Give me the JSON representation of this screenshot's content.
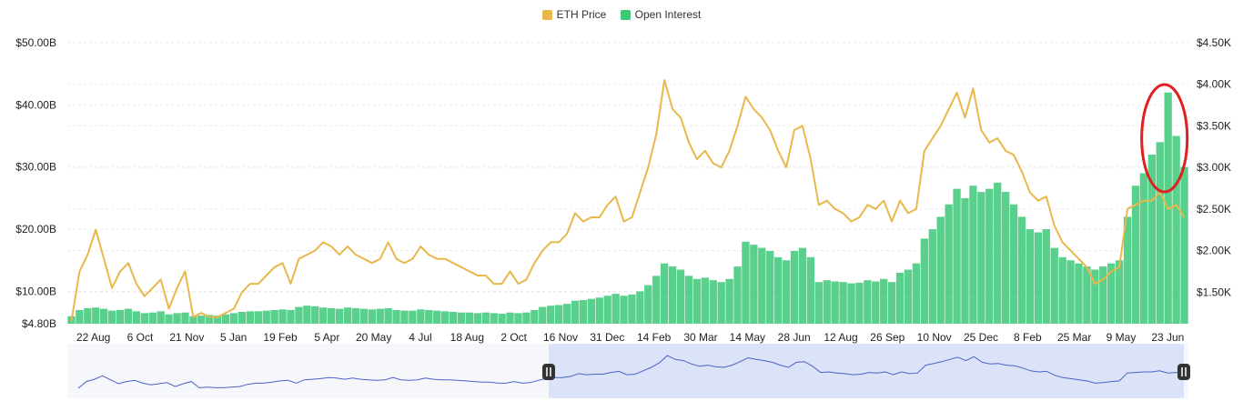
{
  "legend": {
    "price_label": "ETH Price",
    "oi_label": "Open Interest"
  },
  "colors": {
    "price": "#E8B84A",
    "oi": "#3CC878",
    "oi_light": "#8FE0AE",
    "highlight_circle": "#E02020",
    "grid": "#EBEBEB",
    "axis_text": "#222222",
    "navigator_fill": "#DCE2F7",
    "navigator_line": "#4A63C9"
  },
  "chart_data": {
    "type": "bar+line",
    "title": "",
    "x_ticks": [
      "22 Aug",
      "6 Oct",
      "21 Nov",
      "5 Jan",
      "19 Feb",
      "5 Apr",
      "20 May",
      "4 Jul",
      "18 Aug",
      "2 Oct",
      "16 Nov",
      "31 Dec",
      "14 Feb",
      "30 Mar",
      "14 May",
      "28 Jun",
      "12 Aug",
      "26 Sep",
      "10 Nov",
      "25 Dec",
      "8 Feb",
      "25 Mar",
      "9 May",
      "23 Jun"
    ],
    "y_left": {
      "label": "Open Interest",
      "ticks": [
        "$4.80B",
        "$10.00B",
        "$20.00B",
        "$30.00B",
        "$40.00B",
        "$50.00B"
      ],
      "tick_values": [
        4.8,
        10,
        20,
        30,
        40,
        50
      ],
      "range": [
        4.8,
        50
      ]
    },
    "y_right": {
      "label": "ETH Price",
      "ticks": [
        "$1.50K",
        "$2.00K",
        "$2.50K",
        "$3.00K",
        "$3.50K",
        "$4.00K",
        "$4.50K"
      ],
      "tick_values": [
        1.5,
        2.0,
        2.5,
        3.0,
        3.5,
        4.0,
        4.5
      ],
      "range": [
        1.12,
        4.5
      ]
    },
    "series": [
      {
        "name": "ETH Price",
        "type": "line",
        "axis": "right",
        "unit": "K USD",
        "values": [
          1.15,
          1.75,
          1.95,
          2.25,
          1.9,
          1.55,
          1.75,
          1.85,
          1.6,
          1.45,
          1.55,
          1.65,
          1.3,
          1.55,
          1.75,
          1.2,
          1.25,
          1.2,
          1.2,
          1.25,
          1.3,
          1.5,
          1.6,
          1.6,
          1.7,
          1.8,
          1.85,
          1.6,
          1.9,
          1.95,
          2.0,
          2.1,
          2.05,
          1.95,
          2.05,
          1.95,
          1.9,
          1.85,
          1.9,
          2.1,
          1.9,
          1.85,
          1.9,
          2.05,
          1.95,
          1.9,
          1.9,
          1.85,
          1.8,
          1.75,
          1.7,
          1.7,
          1.6,
          1.6,
          1.75,
          1.6,
          1.65,
          1.85,
          2.0,
          2.1,
          2.1,
          2.2,
          2.45,
          2.35,
          2.4,
          2.4,
          2.55,
          2.65,
          2.35,
          2.4,
          2.7,
          3.0,
          3.4,
          4.05,
          3.7,
          3.6,
          3.3,
          3.1,
          3.2,
          3.05,
          3.0,
          3.2,
          3.5,
          3.85,
          3.7,
          3.6,
          3.45,
          3.2,
          3.0,
          3.45,
          3.5,
          3.1,
          2.55,
          2.6,
          2.5,
          2.45,
          2.35,
          2.4,
          2.55,
          2.5,
          2.6,
          2.35,
          2.6,
          2.45,
          2.5,
          3.2,
          3.35,
          3.5,
          3.7,
          3.9,
          3.6,
          3.95,
          3.45,
          3.3,
          3.35,
          3.2,
          3.15,
          2.95,
          2.7,
          2.6,
          2.65,
          2.3,
          2.1,
          2.0,
          1.9,
          1.8,
          1.6,
          1.65,
          1.75,
          1.8,
          2.5,
          2.55,
          2.6,
          2.6,
          2.7,
          2.5,
          2.55,
          2.4
        ]
      },
      {
        "name": "Open Interest",
        "type": "bar",
        "axis": "left",
        "unit": "B USD",
        "values": [
          6.0,
          7.0,
          7.3,
          7.4,
          7.2,
          6.9,
          7.0,
          7.2,
          6.8,
          6.5,
          6.6,
          6.8,
          6.3,
          6.5,
          6.6,
          6.0,
          6.1,
          6.2,
          6.1,
          6.3,
          6.5,
          6.7,
          6.8,
          6.8,
          6.9,
          7.0,
          7.1,
          7.0,
          7.5,
          7.7,
          7.6,
          7.4,
          7.3,
          7.2,
          7.4,
          7.3,
          7.2,
          7.1,
          7.2,
          7.3,
          7.0,
          6.9,
          6.9,
          7.1,
          7.0,
          6.9,
          6.8,
          6.7,
          6.6,
          6.6,
          6.5,
          6.6,
          6.5,
          6.4,
          6.6,
          6.5,
          6.6,
          7.0,
          7.5,
          7.7,
          7.8,
          8.0,
          8.5,
          8.6,
          8.8,
          9.0,
          9.3,
          9.6,
          9.3,
          9.5,
          10.0,
          11.0,
          12.5,
          14.5,
          14.0,
          13.5,
          12.5,
          12.0,
          12.2,
          11.8,
          11.5,
          12.0,
          14.0,
          18.0,
          17.5,
          17.0,
          16.5,
          15.5,
          15.0,
          16.5,
          17.0,
          15.5,
          11.5,
          11.8,
          11.6,
          11.5,
          11.3,
          11.4,
          11.8,
          11.6,
          12.0,
          11.5,
          13.0,
          13.5,
          14.5,
          18.5,
          20.0,
          22.0,
          24.0,
          26.5,
          25.0,
          27.0,
          26.0,
          26.5,
          27.5,
          26.0,
          24.0,
          22.0,
          20.0,
          19.5,
          20.0,
          17.0,
          15.5,
          15.0,
          14.5,
          14.0,
          13.5,
          14.0,
          14.5,
          15.0,
          22.0,
          27.0,
          29.0,
          32.0,
          34.0,
          42.0,
          35.0,
          30.0
        ]
      }
    ],
    "annotations": [
      "red circle highlighting the Open Interest peak"
    ],
    "grid": true,
    "legend_position": "top-center",
    "navigator": true,
    "navigator_selected_from_tick": "16 Nov"
  }
}
